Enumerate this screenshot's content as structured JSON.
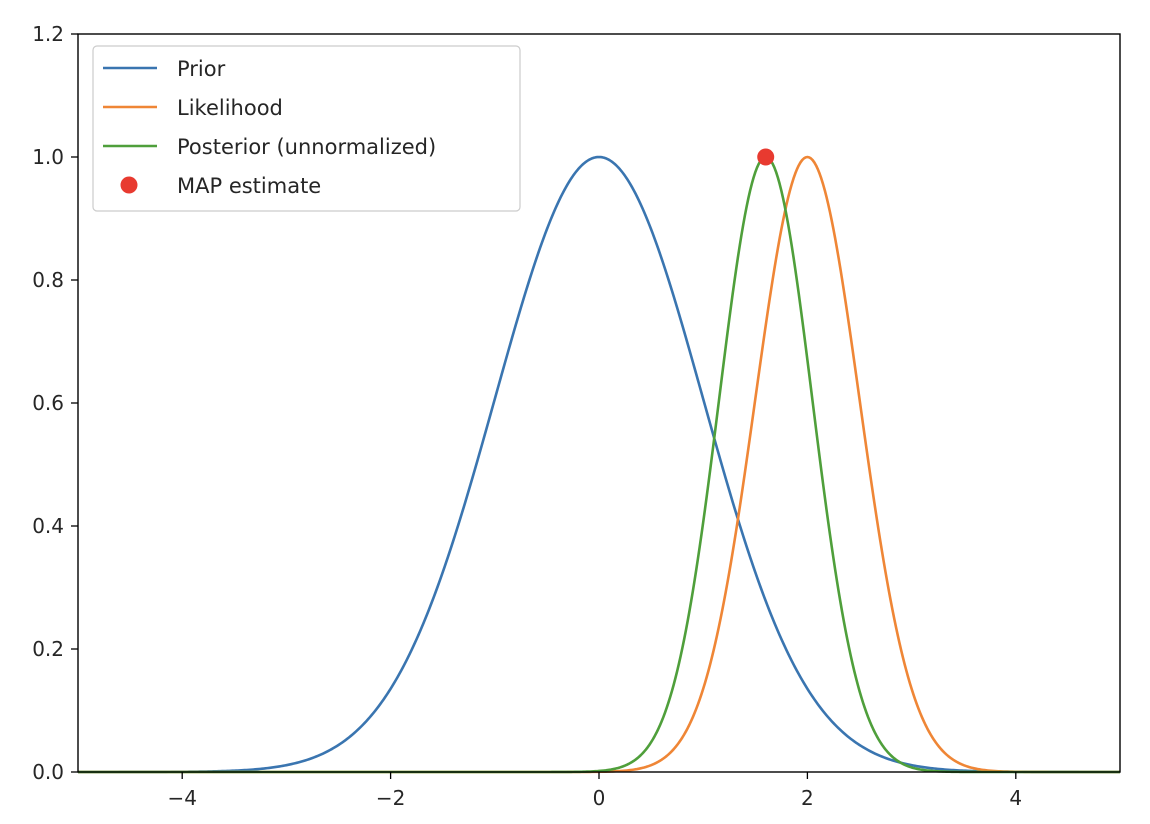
{
  "chart_data": {
    "type": "line",
    "title": "",
    "xlabel": "",
    "ylabel": "",
    "xlim": [
      -5,
      5
    ],
    "ylim": [
      0,
      1.2
    ],
    "x_ticks": [
      -4,
      -2,
      0,
      2,
      4
    ],
    "x_tick_labels": [
      "−4",
      "−2",
      "0",
      "2",
      "4"
    ],
    "y_ticks": [
      0,
      0.2,
      0.4,
      0.6,
      0.8,
      1.0,
      1.2
    ],
    "y_tick_labels": [
      "0.0",
      "0.2",
      "0.4",
      "0.6",
      "0.8",
      "1.0",
      "1.2"
    ],
    "grid": false,
    "legend_position": "top-left",
    "series": [
      {
        "name": "Prior",
        "kind": "line",
        "color": "#3a75b0",
        "shape": "gaussian",
        "mean": 0,
        "sd": 1,
        "peak": 1.0
      },
      {
        "name": "Likelihood",
        "kind": "line",
        "color": "#ef8636",
        "shape": "gaussian",
        "mean": 2,
        "sd": 0.5,
        "peak": 1.0
      },
      {
        "name": "Posterior (unnormalized)",
        "kind": "line",
        "color": "#4f9f3b",
        "shape": "gaussian",
        "mean": 1.6,
        "sd": 0.447,
        "peak": 1.0
      },
      {
        "name": "MAP estimate",
        "kind": "point",
        "color": "#e83a30",
        "x": 1.6,
        "y": 1.0
      }
    ]
  }
}
